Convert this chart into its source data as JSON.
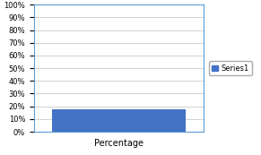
{
  "categories": [
    "Percentage"
  ],
  "values": [
    18
  ],
  "bar_color": "#4472C4",
  "ylim": [
    0,
    1
  ],
  "yticks": [
    0.0,
    0.1,
    0.2,
    0.3,
    0.4,
    0.5,
    0.6,
    0.7,
    0.8,
    0.9,
    1.0
  ],
  "ytick_labels": [
    "0%",
    "10%",
    "20%",
    "30%",
    "40%",
    "50%",
    "60%",
    "70%",
    "80%",
    "90%",
    "100%"
  ],
  "xlabel": "Percentage",
  "legend_label": "Series1",
  "legend_color": "#4472C4",
  "background_color": "#ffffff",
  "grid_color": "#BFBFBF",
  "border_color": "#5B9BD5",
  "xlabel_fontsize": 7,
  "ytick_fontsize": 6,
  "legend_fontsize": 6,
  "bar_width": 0.95
}
